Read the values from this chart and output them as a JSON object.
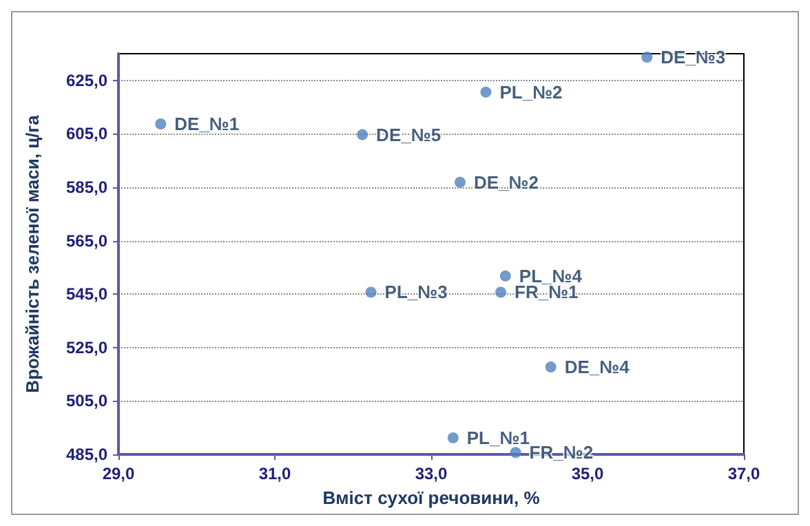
{
  "chart_data": {
    "type": "scatter",
    "xlabel": "Вміст сухої речовини, %",
    "ylabel": "Врожайність зеленої маси, ц/га",
    "series": [
      {
        "name": "DE_№1",
        "color": "#4f81bd",
        "x": [
          29.54
        ],
        "values": [
          608.7
        ]
      },
      {
        "name": "DE_№5",
        "color": "#4f81bd",
        "x": [
          32.12
        ],
        "values": [
          604.7
        ]
      },
      {
        "name": "PL_№2",
        "color": "#4f81bd",
        "x": [
          33.7
        ],
        "values": [
          620.6
        ]
      },
      {
        "name": "DE_№3",
        "color": "#4f81bd",
        "x": [
          35.76
        ],
        "values": [
          633.7
        ]
      },
      {
        "name": "DE_№2",
        "color": "#4f81bd",
        "x": [
          33.37
        ],
        "values": [
          586.9
        ]
      },
      {
        "name": "PL_№4",
        "color": "#4f81bd",
        "x": [
          33.95
        ],
        "values": [
          551.8
        ]
      },
      {
        "name": "FR_№1",
        "color": "#4f81bd",
        "x": [
          33.89
        ],
        "values": [
          545.7
        ]
      },
      {
        "name": "PL_№3",
        "color": "#4f81bd",
        "x": [
          32.23
        ],
        "values": [
          545.7
        ]
      },
      {
        "name": "DE_№4",
        "color": "#4f81bd",
        "x": [
          34.53
        ],
        "values": [
          517.7
        ]
      },
      {
        "name": "PL_№1",
        "color": "#4f81bd",
        "x": [
          33.28
        ],
        "values": [
          491.2
        ]
      },
      {
        "name": "FR_№2",
        "color": "#4f81bd",
        "x": [
          34.08
        ],
        "values": [
          485.7
        ]
      }
    ],
    "marker": "circle",
    "xlim": [
      29,
      37
    ],
    "xticks": [
      {
        "value": 29,
        "label": "29,0"
      },
      {
        "value": 31,
        "label": "31,0"
      },
      {
        "value": 33,
        "label": "33,0"
      },
      {
        "value": 35,
        "label": "35,0"
      },
      {
        "value": 37,
        "label": "37,0"
      }
    ],
    "ylim": [
      485,
      635
    ],
    "yticks": [
      {
        "value": 485,
        "label": "485,0"
      },
      {
        "value": 505,
        "label": "505,0"
      },
      {
        "value": 525,
        "label": "525,0"
      },
      {
        "value": 545,
        "label": "545,0"
      },
      {
        "value": 565,
        "label": "565,0"
      },
      {
        "value": 585,
        "label": "585,0"
      },
      {
        "value": 605,
        "label": "605,0"
      },
      {
        "value": 625,
        "label": "625,0"
      }
    ],
    "grid": "y"
  }
}
